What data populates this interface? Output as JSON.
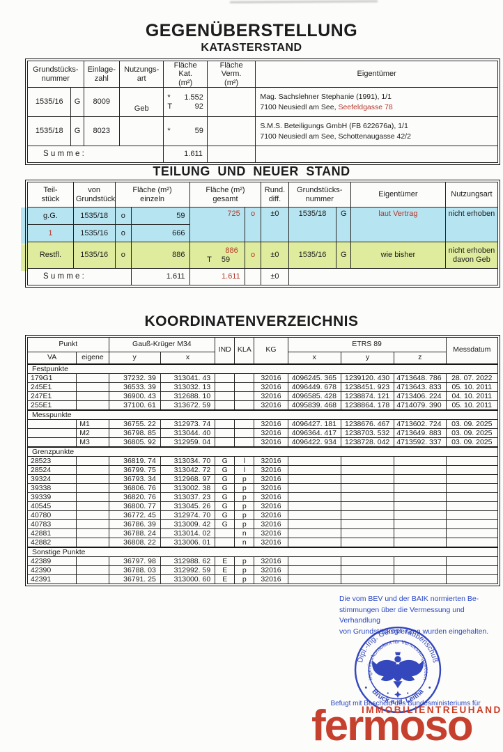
{
  "colors": {
    "accent_red": "#b5372a",
    "highlight_blue": "#b7e4f1",
    "highlight_green": "#dfec9e",
    "stamp_blue": "#2438b8",
    "note_blue": "#2b49c4",
    "logo_red": "#c6402e",
    "immo_red": "#cc3a22"
  },
  "kataster": {
    "title": "GEGENÜBERSTELLUNG",
    "subtitle": "KATASTERSTAND",
    "headers": [
      "Grundstücks-\nnummer",
      "Einlage-\nzahl",
      "Nutzungs-\nart",
      "Fläche Kat.\n(m²)",
      "Fläche Verm.\n(m²)",
      "Eigentümer"
    ],
    "r1": {
      "nummer": "1535/16",
      "g": "G",
      "einlagezahl": "8009",
      "nutzungsart": "Geb",
      "kat_m1": "*",
      "kat_v1": "1.552",
      "kat_m2": "T",
      "kat_v2": "92",
      "owner1": "Mag. Sachslehner Stephanie (1991), 1/1",
      "owner2": "7100 Neusiedl am See, ",
      "owner2_red": "Seefeldgasse 78"
    },
    "r2": {
      "nummer": "1535/18",
      "g": "G",
      "einlagezahl": "8023",
      "nutzungsart": "",
      "kat_m1": "*",
      "kat_v1": "59",
      "owner1": "S.M.S. Beteiligungs GmbH (FB 622676a), 1/1",
      "owner2": "7100 Neusiedl am See, Schottenaugasse 42/2",
      "owner2_red": ""
    },
    "summe": {
      "label": "S u m m e :",
      "kat": "1.611"
    }
  },
  "teilung": {
    "title": "TEILUNG UND NEUER STAND",
    "headers": [
      "Teil-\nstück",
      "von\nGrundstück",
      "Fläche (m²)\neinzeln",
      "Fläche (m²)\ngesamt",
      "Rund.\ndiff.",
      "Grundstücks-\nnummer",
      "Eigentümer",
      "Nutzungsart"
    ],
    "r1": {
      "teil": "g.G.",
      "von": "1535/18",
      "o": "o",
      "einzeln": "59"
    },
    "r2": {
      "teil": "1",
      "von": "1535/16",
      "o": "o",
      "einzeln": "666"
    },
    "merged": {
      "gesamt": "725",
      "o": "o",
      "rund": "±0",
      "nummer": "1535/18",
      "g": "G",
      "eigentuemer": "laut Vertrag",
      "nutzungsart": "nicht erhoben"
    },
    "r3": {
      "teil": "Restfl.",
      "von": "1535/16",
      "o": "o",
      "einzeln": "886",
      "gesamt": "886",
      "t": "T",
      "t_val": "59",
      "o2": "o",
      "rund": "±0",
      "nummer": "1535/16",
      "g": "G",
      "eigentuemer": "wie bisher",
      "nutzungsart": "nicht erhoben\ndavon Geb"
    },
    "summe": {
      "label": "S u m m e :",
      "einzeln": "1.611",
      "gesamt": "1.611",
      "rund": "±0"
    }
  },
  "koordinaten": {
    "title": "KOORDINATENVERZEICHNIS",
    "headers": {
      "punkt": "Punkt",
      "va": "VA",
      "eigene": "eigene",
      "gk": "Gauß-Krüger M34",
      "y": "y",
      "x": "x",
      "ind": "IND",
      "kla": "KLA",
      "kg": "KG",
      "etrs": "ETRS 89",
      "ex": "x",
      "ey": "y",
      "ez": "z",
      "messdatum": "Messdatum"
    },
    "sections": [
      {
        "label": "Festpunkte",
        "rows": [
          [
            "179G1",
            "",
            "37232. 39",
            "313041. 43",
            "",
            "",
            "32016",
            "4096245. 365",
            "1239120. 430",
            "4713648. 786",
            "28. 07. 2022"
          ],
          [
            "245E1",
            "",
            "36533. 39",
            "313032. 13",
            "",
            "",
            "32016",
            "4096449. 678",
            "1238451. 923",
            "4713643. 833",
            "05. 10. 2011"
          ],
          [
            "247E1",
            "",
            "36900. 43",
            "312688. 10",
            "",
            "",
            "32016",
            "4096585. 428",
            "1238874. 121",
            "4713406. 224",
            "04. 10. 2011"
          ],
          [
            "255E1",
            "",
            "37100. 61",
            "313672. 59",
            "",
            "",
            "32016",
            "4095839. 468",
            "1238864. 178",
            "4714079. 390",
            "05. 10. 2011"
          ]
        ]
      },
      {
        "label": "Messpunkte",
        "rows": [
          [
            "",
            "M1",
            "36755. 22",
            "312973. 74",
            "",
            "",
            "32016",
            "4096427. 181",
            "1238676. 467",
            "4713602. 724",
            "03. 09. 2025"
          ],
          [
            "",
            "M2",
            "36798. 85",
            "313044. 40",
            "",
            "",
            "32016",
            "4096364. 417",
            "1238703. 532",
            "4713649. 883",
            "03. 09. 2025"
          ],
          [
            "",
            "M3",
            "36805. 92",
            "312959. 04",
            "",
            "",
            "32016",
            "4096422. 934",
            "1238728. 042",
            "4713592. 337",
            "03. 09. 2025"
          ]
        ]
      },
      {
        "label": "Grenzpunkte",
        "rows": [
          [
            "28523",
            "",
            "36819. 74",
            "313034. 70",
            "G",
            "l",
            "32016",
            "",
            "",
            "",
            ""
          ],
          [
            "28524",
            "",
            "36799. 75",
            "313042. 72",
            "G",
            "l",
            "32016",
            "",
            "",
            "",
            ""
          ],
          [
            "39324",
            "",
            "36793. 34",
            "312968. 97",
            "G",
            "p",
            "32016",
            "",
            "",
            "",
            ""
          ],
          [
            "39338",
            "",
            "36806. 76",
            "313002. 38",
            "G",
            "p",
            "32016",
            "",
            "",
            "",
            ""
          ],
          [
            "39339",
            "",
            "36820. 76",
            "313037. 23",
            "G",
            "p",
            "32016",
            "",
            "",
            "",
            ""
          ],
          [
            "40545",
            "",
            "36800. 77",
            "313045. 26",
            "G",
            "p",
            "32016",
            "",
            "",
            "",
            ""
          ],
          [
            "40780",
            "",
            "36772. 45",
            "312974. 70",
            "G",
            "p",
            "32016",
            "",
            "",
            "",
            ""
          ],
          [
            "40783",
            "",
            "36786. 39",
            "313009. 42",
            "G",
            "p",
            "32016",
            "",
            "",
            "",
            ""
          ],
          [
            "42881",
            "",
            "36788. 24",
            "313014. 02",
            "",
            "n",
            "32016",
            "",
            "",
            "",
            ""
          ],
          [
            "42882",
            "",
            "36808. 22",
            "313006. 01",
            "",
            "n",
            "32016",
            "",
            "",
            "",
            ""
          ]
        ]
      },
      {
        "label": "Sonstige Punkte",
        "rows": [
          [
            "42389",
            "",
            "36797. 98",
            "312988. 62",
            "E",
            "p",
            "32016",
            "",
            "",
            "",
            ""
          ],
          [
            "42390",
            "",
            "36788. 03",
            "312992. 59",
            "E",
            "p",
            "32016",
            "",
            "",
            "",
            ""
          ],
          [
            "42391",
            "",
            "36791. 25",
            "313000. 60",
            "E",
            "p",
            "32016",
            "",
            "",
            "",
            ""
          ]
        ]
      }
    ]
  },
  "hinweis": {
    "line1": "Die vom BEV und der BAIK normierten Be-",
    "line2": "stimmungen über die Vermessung und Verhandlung",
    "line3": "von Grundstücksgrenzen wurden eingehalten."
  },
  "stempel": {
    "oben": "Dipl.-Ing. Gernot Taubenschuß",
    "mitte": "Ingenieurkonsulent für Vermessungswesen",
    "unten": "Bruck a. d. Leitha"
  },
  "footer": {
    "befugt": "Befugt mit Bescheid des Bundesministeriums für",
    "brand_small": "IMMOBILIENTREUHAND",
    "brand": "fermoso"
  }
}
